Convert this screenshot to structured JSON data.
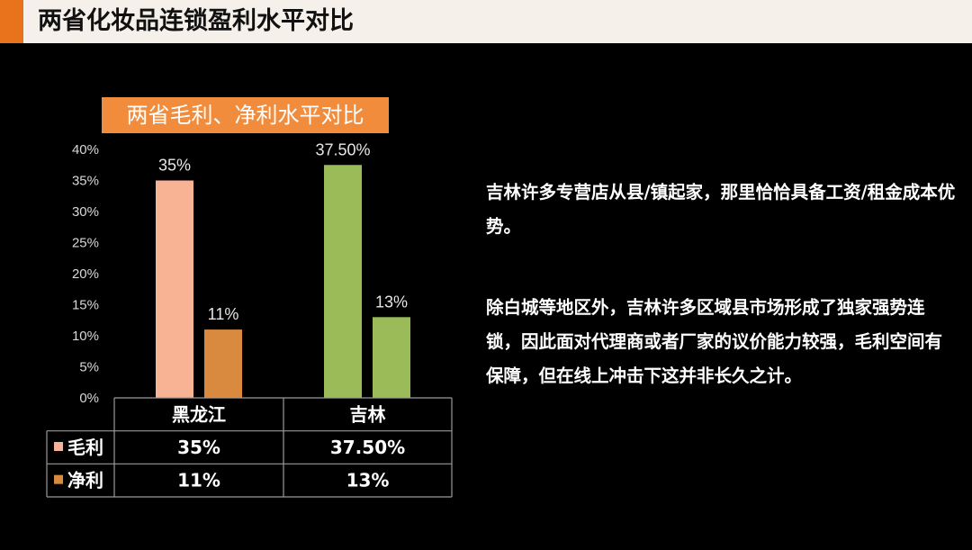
{
  "page": {
    "title": "两省化妆品连锁盈利水平对比",
    "accent_color": "#e8731c",
    "header_bg": "#f5f0ea"
  },
  "chart_data": {
    "type": "bar",
    "title": "两省毛利、净利水平对比",
    "categories": [
      "黑龙江",
      "吉林"
    ],
    "series": [
      {
        "name": "毛利",
        "values": [
          35,
          37.5
        ],
        "labels": [
          "35%",
          "37.50%"
        ],
        "table_labels": [
          "35%",
          "37.50%"
        ]
      },
      {
        "name": "净利",
        "values": [
          11,
          13
        ],
        "labels": [
          "11%",
          "13%"
        ],
        "table_labels": [
          "11%",
          "13%"
        ]
      }
    ],
    "colors": {
      "黑龙江": [
        "#f8b294",
        "#d98a3e"
      ],
      "吉林": [
        "#9bbb59",
        "#9bbb59"
      ]
    },
    "y_ticks": [
      "40%",
      "35%",
      "30%",
      "25%",
      "20%",
      "15%",
      "10%",
      "5%",
      "0%"
    ],
    "ylim": [
      0,
      40
    ],
    "legend_colors": [
      "#f8b294",
      "#d98a3e"
    ],
    "data_table": true,
    "legend": "in-table"
  },
  "text": {
    "para1": "吉林许多专营店从县/镇起家，那里恰恰具备工资/租金成本优势。",
    "para2": "除白城等地区外，吉林许多区域县市场形成了独家强势连锁，因此面对代理商或者厂家的议价能力较强，毛利空间有保障，但在线上冲击下这并非长久之计。"
  }
}
